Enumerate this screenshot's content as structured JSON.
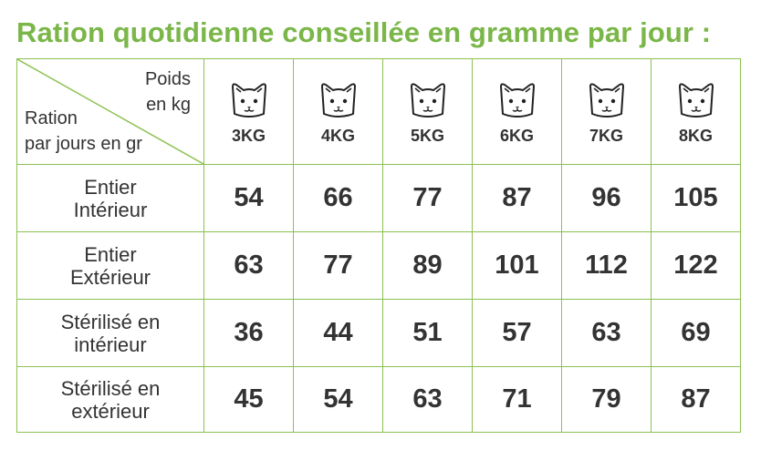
{
  "title": "Ration quotidienne conseillée en gramme par jour :",
  "header": {
    "poids_line1": "Poids",
    "poids_line2": "en kg",
    "ration_line1": "Ration",
    "ration_line2": "par jours en gr",
    "icon": "cat-face-icon",
    "weights": [
      "3KG",
      "4KG",
      "5KG",
      "6KG",
      "7KG",
      "8KG"
    ]
  },
  "rows": [
    {
      "line1": "Entier",
      "line2": "Intérieur",
      "values": [
        "54",
        "66",
        "77",
        "87",
        "96",
        "105"
      ]
    },
    {
      "line1": "Entier",
      "line2": "Extérieur",
      "values": [
        "63",
        "77",
        "89",
        "101",
        "112",
        "122"
      ]
    },
    {
      "line1": "Stérilisé en",
      "line2": "intérieur",
      "values": [
        "36",
        "44",
        "51",
        "57",
        "63",
        "69"
      ]
    },
    {
      "line1": "Stérilisé en",
      "line2": "extérieur",
      "values": [
        "45",
        "54",
        "63",
        "71",
        "79",
        "87"
      ]
    }
  ],
  "colors": {
    "accent": "#7ab648",
    "border": "#8cc152",
    "text": "#333333"
  }
}
